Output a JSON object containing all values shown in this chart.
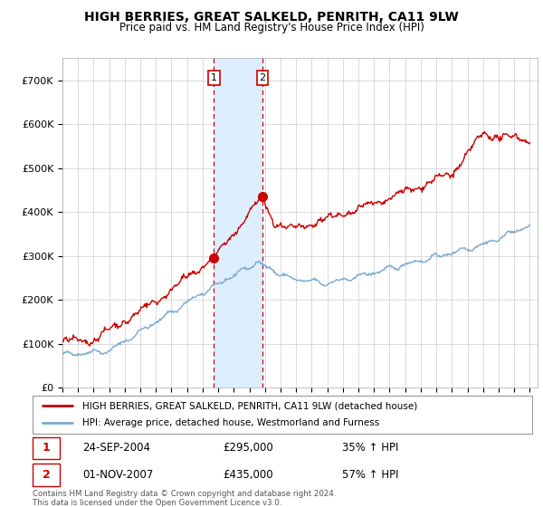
{
  "title": "HIGH BERRIES, GREAT SALKELD, PENRITH, CA11 9LW",
  "subtitle": "Price paid vs. HM Land Registry's House Price Index (HPI)",
  "legend_line1": "HIGH BERRIES, GREAT SALKELD, PENRITH, CA11 9LW (detached house)",
  "legend_line2": "HPI: Average price, detached house, Westmorland and Furness",
  "sale1_date": "24-SEP-2004",
  "sale1_price": "£295,000",
  "sale1_hpi": "35% ↑ HPI",
  "sale2_date": "01-NOV-2007",
  "sale2_price": "£435,000",
  "sale2_hpi": "57% ↑ HPI",
  "footer": "Contains HM Land Registry data © Crown copyright and database right 2024.\nThis data is licensed under the Open Government Licence v3.0.",
  "red_color": "#cc0000",
  "blue_color": "#7aaad0",
  "highlight_color": "#ddeeff",
  "ylim": [
    0,
    750000
  ],
  "yticks": [
    0,
    100000,
    200000,
    300000,
    400000,
    500000,
    600000,
    700000
  ],
  "ytick_labels": [
    "£0",
    "£100K",
    "£200K",
    "£300K",
    "£400K",
    "£500K",
    "£600K",
    "£700K"
  ],
  "sale1_x": 2004.73,
  "sale2_x": 2007.83,
  "highlight_x1": 2004.73,
  "highlight_x2": 2007.83,
  "xmin": 1995.0,
  "xmax": 2025.5,
  "sale1_y": 295000,
  "sale2_y": 435000
}
